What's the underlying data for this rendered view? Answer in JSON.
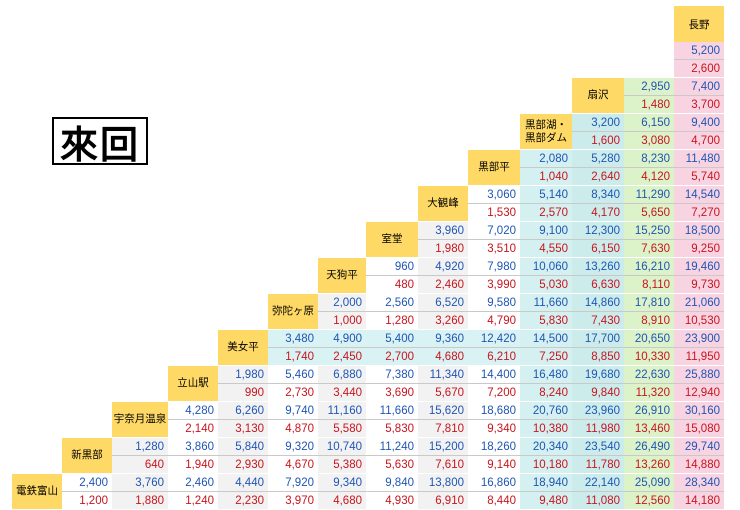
{
  "title": "來回",
  "stations": [
    "電鉄富山",
    "新黒部",
    "宇奈月温泉",
    "立山駅",
    "美女平",
    "弥陀ヶ原",
    "天狗平",
    "室堂",
    "大観峰",
    "黒部平",
    "黒部湖・\n黒部ダム",
    "扇沢",
    "信濃大町",
    "長野"
  ],
  "rows": [
    {
      "station": "長野",
      "blue": [
        5200
      ],
      "red": [
        2600
      ]
    },
    {
      "station": "信濃大町",
      "blue": [
        2950,
        7400
      ],
      "red": [
        1480,
        3700
      ]
    },
    {
      "station": "扇沢",
      "blue": [
        3200,
        6150,
        9400
      ],
      "red": [
        1600,
        3080,
        4700
      ]
    },
    {
      "station": "黒部湖・黒部ダム",
      "blue": [
        2080,
        5280,
        8230,
        11480
      ],
      "red": [
        1040,
        2640,
        4120,
        5740
      ]
    },
    {
      "station": "黒部平",
      "blue": [
        3060,
        5140,
        8340,
        11290,
        14540
      ],
      "red": [
        1530,
        2570,
        4170,
        5650,
        7270
      ]
    },
    {
      "station": "大観峰",
      "blue": [
        3960,
        7020,
        9100,
        12300,
        15250,
        18500
      ],
      "red": [
        1980,
        3510,
        4550,
        6150,
        7630,
        9250
      ]
    },
    {
      "station": "室堂",
      "blue": [
        960,
        4920,
        7980,
        10060,
        13260,
        16210,
        19460
      ],
      "red": [
        480,
        2460,
        3990,
        5030,
        6630,
        8110,
        9730
      ]
    },
    {
      "station": "天狗平",
      "blue": [
        2000,
        2560,
        6520,
        9580,
        11660,
        14860,
        17810,
        21060
      ],
      "red": [
        1000,
        1280,
        3260,
        4790,
        5830,
        7430,
        8910,
        10530
      ]
    },
    {
      "station": "弥陀ヶ原",
      "blue": [
        3480,
        4900,
        5400,
        9360,
        12420,
        14500,
        17700,
        20650,
        23900
      ],
      "red": [
        1740,
        2450,
        2700,
        4680,
        6210,
        7250,
        8850,
        10330,
        11950
      ]
    },
    {
      "station": "美女平",
      "blue": [
        1980,
        5460,
        6880,
        7380,
        11340,
        14400,
        16480,
        19680,
        22630,
        25880
      ],
      "red": [
        990,
        2730,
        3440,
        3690,
        5670,
        7200,
        8240,
        9840,
        11320,
        12940
      ]
    },
    {
      "station": "立山駅",
      "blue": [
        4280,
        6260,
        9740,
        11160,
        11660,
        15620,
        18680,
        20760,
        23960,
        26910,
        30160
      ],
      "red": [
        2140,
        3130,
        4870,
        5580,
        5830,
        7810,
        9340,
        10380,
        11980,
        13460,
        15080
      ]
    },
    {
      "station": "宇奈月温泉",
      "blue": [
        1280,
        3860,
        5840,
        9320,
        10740,
        11240,
        15200,
        18260,
        20340,
        23540,
        26490,
        29740
      ],
      "red": [
        640,
        1940,
        2930,
        4670,
        5380,
        5630,
        7610,
        9140,
        10180,
        11780,
        13260,
        14880
      ]
    },
    {
      "station": "新黒部",
      "blue": [
        2400,
        3760,
        2460,
        4440,
        7920,
        9340,
        9840,
        13800,
        16860,
        18940,
        22140,
        25090,
        28340
      ],
      "red": [
        1200,
        1880,
        1240,
        2230,
        3970,
        4680,
        4930,
        6910,
        8440,
        9480,
        11080,
        12560,
        14180
      ]
    }
  ],
  "colors": {
    "label_bg": "#ffd965",
    "blue_text": "#1f55b4",
    "red_text": "#c8141e",
    "col_even": "#f2f2f2",
    "col_odd": "#ffffff",
    "col_kurobeko": "#d5f0f0",
    "col_ogizawa": "#ccecec",
    "col_shinano": "#dcf2c8",
    "col_nagano": "#f8d4e2",
    "row_midagahara_bg": "#d9f2f4"
  }
}
